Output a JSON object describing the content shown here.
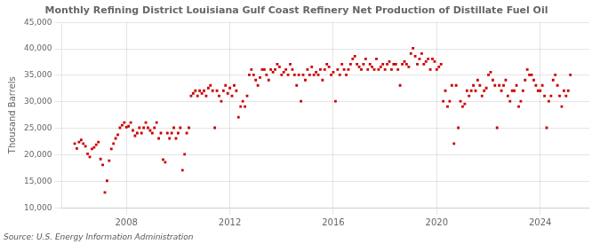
{
  "chart_data": {
    "type": "scatter",
    "title": "Monthly Refining District Louisiana Gulf Coast Refinery Net Production of Distillate Fuel Oil",
    "ylabel": "Thousand Barrels",
    "annotation": "Source: U.S. Energy Information Administration",
    "color": "#cc0000",
    "marker": "square",
    "grid": true,
    "xlim": [
      2005.5,
      2025.9
    ],
    "xticks": [
      2008,
      2012,
      2016,
      2020,
      2024
    ],
    "ylim": [
      10000,
      45000
    ],
    "yticks": [
      {
        "value": 10000,
        "label": "10,000"
      },
      {
        "value": 15000,
        "label": "15,000"
      },
      {
        "value": 20000,
        "label": "20,000"
      },
      {
        "value": 25000,
        "label": "25,000"
      },
      {
        "value": 30000,
        "label": "30,000"
      },
      {
        "value": 35000,
        "label": "35,000"
      },
      {
        "value": 40000,
        "label": "40,000"
      },
      {
        "value": 45000,
        "label": "45,000"
      }
    ],
    "x": [
      2006.0,
      2006.083,
      2006.167,
      2006.25,
      2006.333,
      2006.417,
      2006.5,
      2006.583,
      2006.667,
      2006.75,
      2006.833,
      2006.917,
      2007.0,
      2007.083,
      2007.167,
      2007.25,
      2007.333,
      2007.417,
      2007.5,
      2007.583,
      2007.667,
      2007.75,
      2007.833,
      2007.917,
      2008.0,
      2008.083,
      2008.167,
      2008.25,
      2008.333,
      2008.417,
      2008.5,
      2008.583,
      2008.667,
      2008.75,
      2008.833,
      2008.917,
      2009.0,
      2009.083,
      2009.167,
      2009.25,
      2009.333,
      2009.417,
      2009.5,
      2009.583,
      2009.667,
      2009.75,
      2009.833,
      2009.917,
      2010.0,
      2010.083,
      2010.167,
      2010.25,
      2010.333,
      2010.417,
      2010.5,
      2010.583,
      2010.667,
      2010.75,
      2010.833,
      2010.917,
      2011.0,
      2011.083,
      2011.167,
      2011.25,
      2011.333,
      2011.417,
      2011.5,
      2011.583,
      2011.667,
      2011.75,
      2011.833,
      2011.917,
      2012.0,
      2012.083,
      2012.167,
      2012.25,
      2012.333,
      2012.417,
      2012.5,
      2012.583,
      2012.667,
      2012.75,
      2012.833,
      2012.917,
      2013.0,
      2013.083,
      2013.167,
      2013.25,
      2013.333,
      2013.417,
      2013.5,
      2013.583,
      2013.667,
      2013.75,
      2013.833,
      2013.917,
      2014.0,
      2014.083,
      2014.167,
      2014.25,
      2014.333,
      2014.417,
      2014.5,
      2014.583,
      2014.667,
      2014.75,
      2014.833,
      2014.917,
      2015.0,
      2015.083,
      2015.167,
      2015.25,
      2015.333,
      2015.417,
      2015.5,
      2015.583,
      2015.667,
      2015.75,
      2015.833,
      2015.917,
      2016.0,
      2016.083,
      2016.167,
      2016.25,
      2016.333,
      2016.417,
      2016.5,
      2016.583,
      2016.667,
      2016.75,
      2016.833,
      2016.917,
      2017.0,
      2017.083,
      2017.167,
      2017.25,
      2017.333,
      2017.417,
      2017.5,
      2017.583,
      2017.667,
      2017.75,
      2017.833,
      2017.917,
      2018.0,
      2018.083,
      2018.167,
      2018.25,
      2018.333,
      2018.417,
      2018.5,
      2018.583,
      2018.667,
      2018.75,
      2018.833,
      2018.917,
      2019.0,
      2019.083,
      2019.167,
      2019.25,
      2019.333,
      2019.417,
      2019.5,
      2019.583,
      2019.667,
      2019.75,
      2019.833,
      2019.917,
      2020.0,
      2020.083,
      2020.167,
      2020.25,
      2020.333,
      2020.417,
      2020.5,
      2020.583,
      2020.667,
      2020.75,
      2020.833,
      2020.917,
      2021.0,
      2021.083,
      2021.167,
      2021.25,
      2021.333,
      2021.417,
      2021.5,
      2021.583,
      2021.667,
      2021.75,
      2021.833,
      2021.917,
      2022.0,
      2022.083,
      2022.167,
      2022.25,
      2022.333,
      2022.417,
      2022.5,
      2022.583,
      2022.667,
      2022.75,
      2022.833,
      2022.917,
      2023.0,
      2023.083,
      2023.167,
      2023.25,
      2023.333,
      2023.417,
      2023.5,
      2023.583,
      2023.667,
      2023.75,
      2023.833,
      2023.917,
      2024.0,
      2024.083,
      2024.167,
      2024.25,
      2024.333,
      2024.417,
      2024.5,
      2024.583,
      2024.667,
      2024.75,
      2024.833,
      2024.917,
      2025.0,
      2025.083,
      2025.167
    ],
    "values": [
      22100,
      21200,
      22400,
      22800,
      22100,
      21600,
      20200,
      19600,
      21100,
      21400,
      21900,
      22400,
      19200,
      18100,
      12900,
      15100,
      18900,
      21100,
      22100,
      23100,
      23800,
      25100,
      25600,
      26100,
      25200,
      25400,
      26100,
      24600,
      23600,
      24100,
      25100,
      24100,
      25100,
      26100,
      25100,
      24600,
      24100,
      25100,
      26100,
      23100,
      24100,
      19100,
      18600,
      24100,
      23100,
      24100,
      25100,
      23100,
      24100,
      25100,
      17100,
      20100,
      24100,
      25100,
      31100,
      31600,
      32100,
      31100,
      32100,
      31600,
      32100,
      31100,
      32600,
      33100,
      32100,
      25100,
      32100,
      31100,
      30100,
      32100,
      33100,
      31600,
      32600,
      31100,
      33100,
      32100,
      27100,
      29100,
      30100,
      29100,
      31100,
      35100,
      36100,
      35100,
      34100,
      33100,
      34600,
      36100,
      36100,
      35100,
      34100,
      36100,
      35600,
      36100,
      37100,
      36600,
      35100,
      35600,
      36100,
      35100,
      37100,
      36100,
      35100,
      33100,
      35100,
      30100,
      35100,
      34100,
      36100,
      35100,
      36600,
      35100,
      35600,
      35100,
      36100,
      34100,
      36100,
      37100,
      36600,
      35100,
      35600,
      30100,
      36100,
      35100,
      37100,
      36100,
      35100,
      36100,
      37100,
      38100,
      38600,
      37100,
      36600,
      36100,
      37100,
      38100,
      36100,
      37100,
      36600,
      36100,
      38100,
      36100,
      36600,
      37100,
      36100,
      37100,
      37600,
      36100,
      37100,
      37100,
      36100,
      33100,
      37100,
      37600,
      37100,
      36600,
      39100,
      40100,
      38600,
      37100,
      38100,
      39100,
      37100,
      37600,
      38100,
      36100,
      38100,
      37600,
      36100,
      36600,
      37100,
      30100,
      32100,
      29100,
      30100,
      33100,
      22100,
      33100,
      25100,
      30100,
      29100,
      29600,
      32100,
      31100,
      32100,
      33100,
      32100,
      34100,
      33100,
      31100,
      32100,
      32600,
      35100,
      35600,
      34100,
      33100,
      25100,
      33100,
      32100,
      33100,
      34100,
      31100,
      30100,
      32100,
      32100,
      33100,
      29100,
      30100,
      32100,
      34100,
      36100,
      35100,
      35100,
      34100,
      33100,
      32100,
      32100,
      33100,
      31100,
      25100,
      30100,
      31100,
      34100,
      35100,
      33100,
      31100,
      29100,
      32100,
      31100,
      32100,
      35100
    ]
  }
}
